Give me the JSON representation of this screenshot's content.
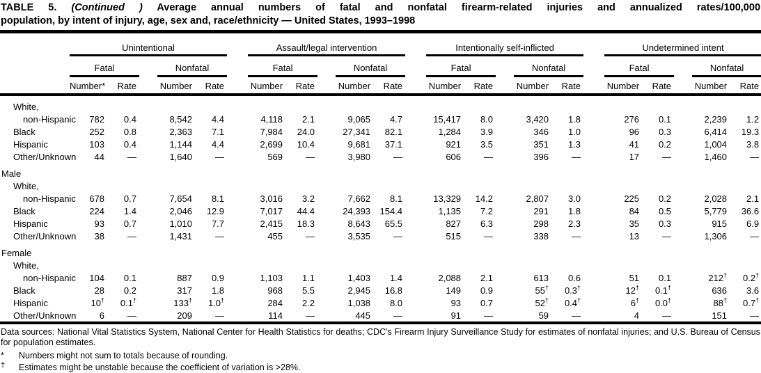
{
  "title": {
    "label": "TABLE 5.",
    "continued": "(Continued )",
    "line1_rest": "Average annual numbers of fatal and nonfatal firearm-related injuries and annualized rates/100,000",
    "line2": "population, by intent of injury, age, sex and, race/ethnicity — United States, 1993–1998"
  },
  "header": {
    "groups": [
      "Unintentional",
      "Assault/legal intervention",
      "Intentionally self-inflicted",
      "Undetermined intent"
    ],
    "subgroups": [
      "Fatal",
      "Nonfatal"
    ],
    "number_first": "Number*",
    "number": "Number",
    "rate": "Rate"
  },
  "table": {
    "sections": [
      {
        "label": "",
        "rows": [
          {
            "label_line1": "White,",
            "label": "non-Hispanic",
            "indent": 2,
            "values": [
              "782",
              "0.4",
              "8,542",
              "4.4",
              "4,118",
              "2.1",
              "9,065",
              "4.7",
              "15,417",
              "8.0",
              "3,420",
              "1.8",
              "276",
              "0.1",
              "2,239",
              "1.2"
            ]
          },
          {
            "label": "Black",
            "indent": 1,
            "values": [
              "252",
              "0.8",
              "2,363",
              "7.1",
              "7,984",
              "24.0",
              "27,341",
              "82.1",
              "1,284",
              "3.9",
              "346",
              "1.0",
              "96",
              "0.3",
              "6,414",
              "19.3"
            ]
          },
          {
            "label": "Hispanic",
            "indent": 1,
            "values": [
              "103",
              "0.4",
              "1,144",
              "4.4",
              "2,699",
              "10.4",
              "9,681",
              "37.1",
              "921",
              "3.5",
              "351",
              "1.3",
              "41",
              "0.2",
              "1,004",
              "3.8"
            ]
          },
          {
            "label": "Other/Unknown",
            "indent": 1,
            "values": [
              "44",
              "—",
              "1,640",
              "—",
              "569",
              "—",
              "3,980",
              "—",
              "606",
              "—",
              "396",
              "—",
              "17",
              "—",
              "1,460",
              "—"
            ]
          }
        ]
      },
      {
        "label": "Male",
        "rows": [
          {
            "label_line1": "White,",
            "label": "non-Hispanic",
            "indent": 2,
            "values": [
              "678",
              "0.7",
              "7,654",
              "8.1",
              "3,016",
              "3.2",
              "7,662",
              "8.1",
              "13,329",
              "14.2",
              "2,807",
              "3.0",
              "225",
              "0.2",
              "2,028",
              "2.1"
            ]
          },
          {
            "label": "Black",
            "indent": 1,
            "values": [
              "224",
              "1.4",
              "2,046",
              "12.9",
              "7,017",
              "44.4",
              "24,393",
              "154.4",
              "1,135",
              "7.2",
              "291",
              "1.8",
              "84",
              "0.5",
              "5,779",
              "36.6"
            ]
          },
          {
            "label": "Hispanic",
            "indent": 1,
            "values": [
              "93",
              "0.7",
              "1,010",
              "7.7",
              "2,415",
              "18.3",
              "8,643",
              "65.5",
              "827",
              "6.3",
              "298",
              "2.3",
              "35",
              "0.3",
              "915",
              "6.9"
            ]
          },
          {
            "label": "Other/Unknown",
            "indent": 1,
            "values": [
              "38",
              "—",
              "1,431",
              "—",
              "455",
              "—",
              "3,535",
              "—",
              "515",
              "—",
              "338",
              "—",
              "13",
              "—",
              "1,306",
              "—"
            ]
          }
        ]
      },
      {
        "label": "Female",
        "rows": [
          {
            "label_line1": "White,",
            "label": "non-Hispanic",
            "indent": 2,
            "values": [
              "104",
              "0.1",
              "887",
              "0.9",
              "1,103",
              "1.1",
              "1,403",
              "1.4",
              "2,088",
              "2.1",
              "613",
              "0.6",
              "51",
              "0.1",
              "212†",
              "0.2†"
            ]
          },
          {
            "label": "Black",
            "indent": 1,
            "values": [
              "28",
              "0.2",
              "317",
              "1.8",
              "968",
              "5.5",
              "2,945",
              "16.8",
              "149",
              "0.9",
              "55†",
              "0.3†",
              "12†",
              "0.1†",
              "636",
              "3.6"
            ]
          },
          {
            "label": "Hispanic",
            "indent": 1,
            "values": [
              "10†",
              "0.1†",
              "133†",
              "1.0†",
              "284",
              "2.2",
              "1,038",
              "8.0",
              "93",
              "0.7",
              "52†",
              "0.4†",
              "6†",
              "0.0†",
              "88†",
              "0.7†"
            ]
          },
          {
            "label": "Other/Unknown",
            "indent": 1,
            "values": [
              "6",
              "—",
              "209",
              "—",
              "114",
              "—",
              "445",
              "—",
              "91",
              "—",
              "59",
              "—",
              "4",
              "—",
              "151",
              "—"
            ]
          }
        ]
      }
    ]
  },
  "footnotes": {
    "data_sources": "Data sources: National Vital Statistics System, National Center for Health Statistics for deaths; CDC's Firearm Injury Surveillance Study for estimates of nonfatal injuries; and U.S. Bureau of Census for population estimates.",
    "star_symbol": "*",
    "star_text": "Numbers might not sum to totals because of rounding.",
    "dagger_symbol": "†",
    "dagger_text": "Estimates might be unstable because the coefficient of variation is >28%."
  }
}
